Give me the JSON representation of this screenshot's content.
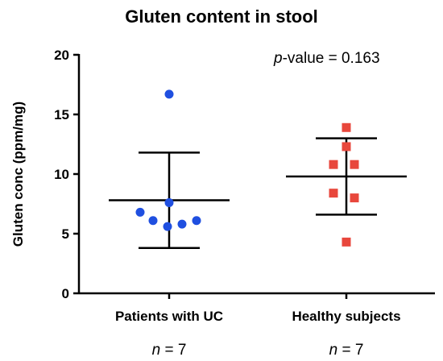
{
  "chart_data": {
    "type": "scatter",
    "title": "Gluten content in stool",
    "ylabel": "Gluten conc (ppm/mg)",
    "xlabel": "",
    "ylim": [
      0,
      20
    ],
    "yticks": [
      0,
      5,
      10,
      15,
      20
    ],
    "grid": false,
    "annotation": {
      "italic": "p",
      "rest": "-value = 0.163"
    },
    "categories": [
      "Patients with UC",
      "Healthy subjects"
    ],
    "groups": [
      {
        "category": "Patients with UC",
        "color": "#1f4fe0",
        "marker": "circle",
        "values": [
          16.7,
          7.6,
          6.8,
          6.1,
          5.6,
          5.8,
          6.1
        ],
        "mean": 7.8,
        "sd_low": 3.8,
        "sd_high": 11.8,
        "n_label": {
          "italic": "n",
          "rest": " = 7"
        }
      },
      {
        "category": "Healthy subjects",
        "color": "#e8473c",
        "marker": "square",
        "values": [
          13.9,
          12.3,
          10.8,
          10.8,
          8.4,
          8.0,
          4.3
        ],
        "mean": 9.8,
        "sd_low": 6.6,
        "sd_high": 13.0,
        "n_label": {
          "italic": "n",
          "rest": " = 7"
        }
      }
    ]
  }
}
